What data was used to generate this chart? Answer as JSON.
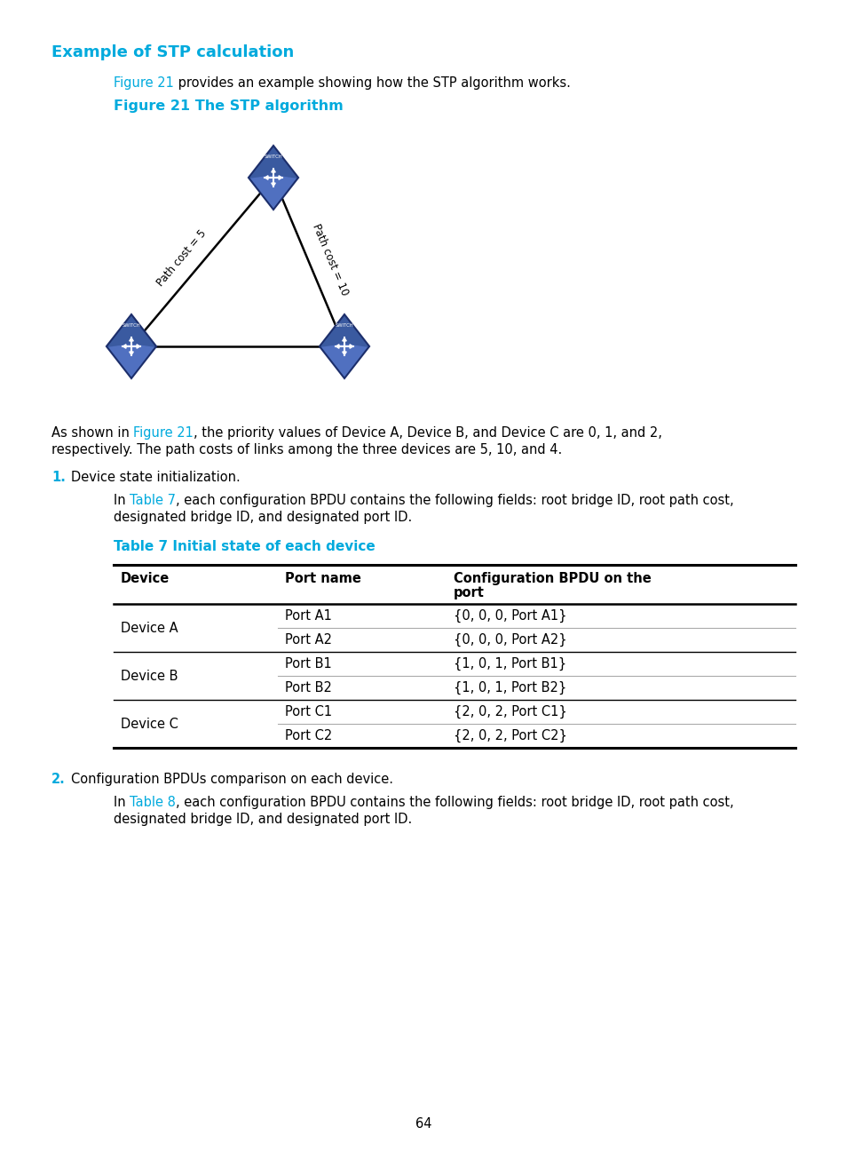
{
  "title": "Example of STP calculation",
  "title_color": "#00AADD",
  "bg_color": "#ffffff",
  "fig21_caption": "Figure 21 The STP algorithm",
  "fig21_caption_color": "#00AADD",
  "path_cost_left": "Path cost = 5",
  "path_cost_right": "Path cost = 10",
  "table7_caption": "Table 7 Initial state of each device",
  "table7_caption_color": "#00AADD",
  "table_header": [
    "Device",
    "Port name",
    "Configuration BPDU on the\nport"
  ],
  "table_rows": [
    [
      "Device A",
      "Port A1",
      "{0, 0, 0, Port A1}"
    ],
    [
      "Device A",
      "Port A2",
      "{0, 0, 0, Port A2}"
    ],
    [
      "Device B",
      "Port B1",
      "{1, 0, 1, Port B1}"
    ],
    [
      "Device B",
      "Port B2",
      "{1, 0, 1, Port B2}"
    ],
    [
      "Device C",
      "Port C1",
      "{2, 0, 2, Port C1}"
    ],
    [
      "Device C",
      "Port C2",
      "{2, 0, 2, Port C2}"
    ]
  ],
  "page_num": "64",
  "link_color": "#00AADD",
  "line_color": "#000000",
  "font_family": "DejaVu Sans",
  "font_size_body": 10.5,
  "font_size_small": 9.0
}
